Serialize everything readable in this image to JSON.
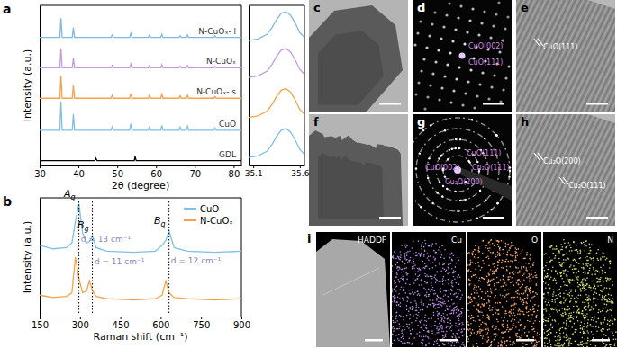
{
  "chart_data": [
    {
      "type": "line",
      "panel_label": "a",
      "xlabel": "2θ (degree)",
      "ylabel": "Intensity (a.u.)",
      "xlim": [
        30,
        82
      ],
      "xticks": [
        30,
        40,
        50,
        60,
        70,
        80
      ],
      "ylim": [
        0,
        100
      ],
      "yticks": [],
      "tick_labels": "x",
      "x": [
        30,
        35.2,
        35.5,
        35.8,
        38.4,
        38.7,
        39.0,
        44.2,
        44.5,
        44.8,
        48.4,
        48.7,
        49.0,
        53.2,
        53.5,
        53.8,
        54.4,
        54.6,
        54.9,
        58.0,
        58.3,
        58.6,
        61.2,
        61.5,
        61.8,
        65.9,
        66.2,
        66.5,
        67.8,
        68.1,
        68.4,
        74.9,
        75.2,
        75.5,
        82
      ],
      "series": [
        {
          "name": "N-CuOₓ- l",
          "color": "#7fb8e6",
          "values": [
            80,
            80,
            92,
            80,
            80,
            86,
            80,
            80,
            80,
            80,
            80,
            81.5,
            80,
            80,
            82.5,
            80,
            80,
            80,
            80,
            80,
            81.5,
            80,
            80,
            82,
            80,
            80,
            81,
            80,
            80,
            81.5,
            80,
            80,
            81,
            80,
            80
          ]
        },
        {
          "name": "N-CuOₓ",
          "color": "#c49be0",
          "values": [
            61,
            61,
            73,
            61,
            61,
            67,
            61,
            61,
            61,
            61,
            61,
            62.5,
            61,
            61,
            63.5,
            61,
            61,
            61,
            61,
            61,
            62.5,
            61,
            61,
            63,
            61,
            61,
            62,
            61,
            61,
            62.5,
            61,
            61,
            62,
            61,
            61
          ]
        },
        {
          "name": "N-CuOₓ- s",
          "color": "#f5a34a",
          "values": [
            42,
            42,
            56,
            42,
            42,
            50,
            42,
            42,
            42,
            42,
            42,
            44,
            42,
            42,
            45,
            42,
            42,
            42,
            42,
            42,
            44,
            42,
            42,
            44.5,
            42,
            42,
            43.5,
            42,
            42,
            44,
            42,
            42,
            43,
            42,
            42
          ]
        },
        {
          "name": "CuO",
          "color": "#7fbfe8",
          "values": [
            22,
            22,
            40,
            22,
            22,
            32,
            22,
            22,
            22,
            22,
            22,
            24,
            22,
            22,
            26,
            22,
            22,
            22,
            22,
            22,
            24,
            22,
            22,
            25,
            22,
            22,
            24,
            22,
            22,
            24.5,
            22,
            22,
            23.5,
            22,
            22
          ]
        },
        {
          "name": "GDL",
          "color": "#000000",
          "values": [
            3,
            3,
            3,
            3,
            3,
            3,
            3,
            3,
            4.5,
            3,
            3,
            3,
            3,
            3,
            3,
            3,
            3,
            5.5,
            3,
            3,
            3,
            3,
            3,
            3,
            3,
            3,
            3,
            3,
            3,
            3,
            3,
            3,
            3,
            3,
            3
          ]
        }
      ]
    },
    {
      "type": "line",
      "xlim": [
        35.05,
        35.65
      ],
      "xticks": [
        35.1,
        35.6
      ],
      "ylim": [
        0,
        100
      ],
      "yticks": [],
      "tick_labels": "x",
      "x": [
        35.05,
        35.15,
        35.25,
        35.3,
        35.35,
        35.4,
        35.45,
        35.5,
        35.55,
        35.6,
        35.65
      ],
      "series": [
        {
          "color": "#7fb8e6",
          "values": [
            78,
            79,
            82,
            86,
            91,
            95,
            96,
            94,
            89,
            83,
            80
          ]
        },
        {
          "color": "#c49be0",
          "values": [
            55,
            56,
            59,
            63,
            68,
            72,
            73,
            71,
            66,
            60,
            57
          ]
        },
        {
          "color": "#f5a34a",
          "values": [
            30,
            31,
            34,
            38,
            43,
            47,
            48,
            46,
            41,
            35,
            32
          ]
        },
        {
          "color": "#7fbfe8",
          "values": [
            5,
            6,
            9,
            13,
            18,
            22,
            23,
            21,
            16,
            10,
            7
          ]
        }
      ]
    },
    {
      "type": "line",
      "panel_label": "b",
      "xlabel": "Raman shift (cm⁻¹)",
      "ylabel": "Intensity (a.u.)",
      "xlim": [
        150,
        900
      ],
      "xticks": [
        150,
        300,
        450,
        600,
        750,
        900
      ],
      "ylim": [
        0,
        100
      ],
      "yticks": [],
      "tick_labels": "x",
      "legend": "upper right",
      "x": [
        150,
        200,
        250,
        270,
        283,
        296,
        310,
        325,
        335,
        346,
        360,
        400,
        500,
        580,
        605,
        619,
        631,
        650,
        700,
        800,
        900
      ],
      "series": [
        {
          "name": "CuO",
          "color": "#7fbfe8",
          "values": [
            60,
            57,
            58,
            62,
            80,
            95,
            70,
            62,
            63,
            68,
            58,
            55,
            54,
            55,
            60,
            64,
            72,
            58,
            55,
            54,
            55
          ]
        },
        {
          "name": "N-CuOₓ",
          "color": "#f5a34a",
          "values": [
            18,
            16,
            17,
            20,
            50,
            32,
            20,
            22,
            30,
            22,
            17,
            15,
            14,
            15,
            18,
            30,
            20,
            16,
            15,
            14,
            15
          ]
        }
      ],
      "peak_labels": [
        {
          "text": "Ag",
          "x": 296
        },
        {
          "text": "Bg",
          "x": 346
        },
        {
          "text": "Bg",
          "x": 631
        }
      ],
      "shift_labels": [
        {
          "text": "d = 13 cm⁻¹",
          "x": 289.5
        },
        {
          "text": "d = 11 cm⁻¹",
          "x": 340.5
        },
        {
          "text": "d = 12 cm⁻¹",
          "x": 625
        }
      ]
    }
  ],
  "panels": [
    {
      "label": "c",
      "kind": "tem"
    },
    {
      "label": "d",
      "kind": "diffraction_spots",
      "annotations": [
        "CuO(002)",
        "CuO(111)"
      ]
    },
    {
      "label": "e",
      "kind": "lattice",
      "annotations": [
        "CuO(111)"
      ]
    },
    {
      "label": "f",
      "kind": "tem_rough"
    },
    {
      "label": "g",
      "kind": "diffraction_rings",
      "annotations": [
        "CuO(111)",
        "CuO(002)",
        "Cu₂O(111)",
        "Cu₂O(200)"
      ]
    },
    {
      "label": "h",
      "kind": "lattice",
      "annotations": [
        "Cu₂O(200)",
        "Cu₂O(111)"
      ]
    },
    {
      "label": "i",
      "kind": "maps",
      "maps": [
        {
          "name": "HADDF",
          "color": "#a8a8a8"
        },
        {
          "name": "Cu",
          "color": "#b98ae0"
        },
        {
          "name": "O",
          "color": "#f0a870"
        },
        {
          "name": "N",
          "color": "#d8e070"
        }
      ]
    }
  ]
}
